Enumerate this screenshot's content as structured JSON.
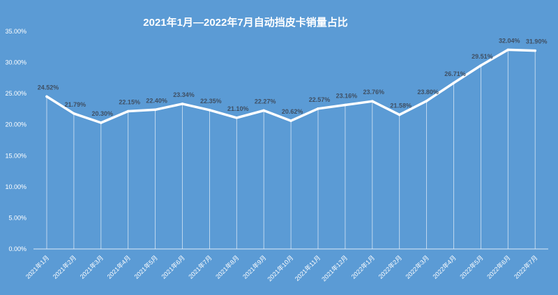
{
  "chart_data": {
    "type": "line",
    "title": "2021年1月—2022年7月自动挡皮卡销量占比",
    "xlabel": "",
    "ylabel": "",
    "categories": [
      "2021年1月",
      "2021年2月",
      "2021年3月",
      "2021年4月",
      "2021年5月",
      "2021年6月",
      "2021年7月",
      "2021年8月",
      "2021年9月",
      "2021年10月",
      "2021年11月",
      "2021年12月",
      "2022年1月",
      "2022年2月",
      "2022年3月",
      "2022年4月",
      "2022年5月",
      "2022年6月",
      "2022年7月"
    ],
    "series": [
      {
        "values": [
          24.52,
          21.79,
          20.3,
          22.15,
          22.4,
          23.34,
          22.35,
          21.1,
          22.27,
          20.62,
          22.57,
          23.16,
          23.76,
          21.58,
          23.8,
          26.71,
          29.51,
          32.04,
          31.9
        ],
        "labels": [
          "24.52%",
          "21.79%",
          "20.30%",
          "22.15%",
          "22.40%",
          "23.34%",
          "22.35%",
          "21.10%",
          "22.27%",
          "20.62%",
          "22.57%",
          "23.16%",
          "23.76%",
          "21.58%",
          "23.80%",
          "26.71%",
          "29.51%",
          "32.04%",
          "31.90%"
        ]
      }
    ],
    "yticks": [
      0,
      5,
      10,
      15,
      20,
      25,
      30,
      35
    ],
    "ytick_labels": [
      "0.00%",
      "5.00%",
      "10.00%",
      "15.00%",
      "20.00%",
      "25.00%",
      "30.00%",
      "35.00%"
    ],
    "ylim": [
      0,
      35
    ],
    "grid": false,
    "colors": {
      "background": "#5b9bd5",
      "line": "#ffffff",
      "drop_lines": "#ffffff",
      "data_label": "#3f4f63"
    }
  }
}
